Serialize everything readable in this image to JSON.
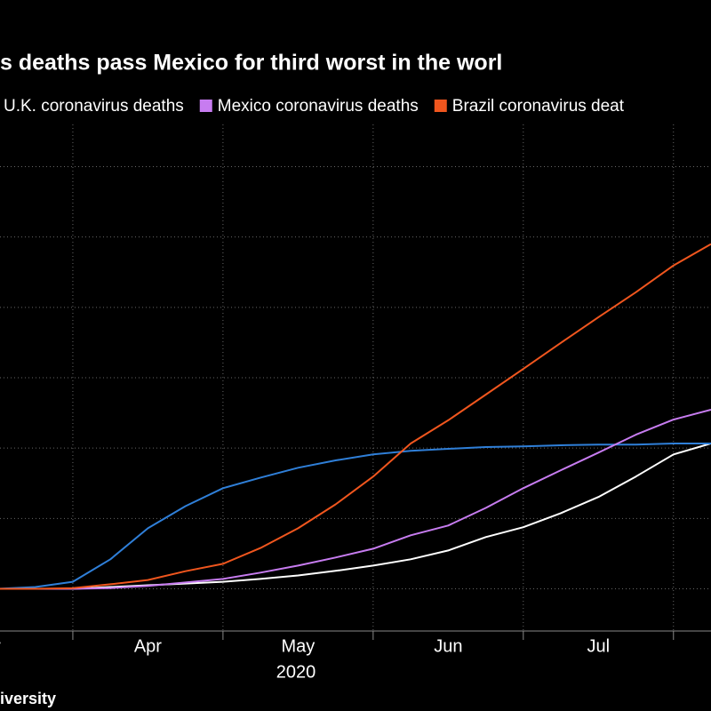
{
  "chart_data": {
    "type": "line",
    "title": "s deaths pass Mexico for third worst in the worl",
    "source": "iversity",
    "year_label": "2020",
    "x": [
      3.5,
      3.75,
      4.0,
      4.25,
      4.5,
      4.75,
      5.0,
      5.25,
      5.5,
      5.75,
      6.0,
      6.25,
      6.5,
      6.75,
      7.0,
      7.25,
      7.5,
      7.75,
      8.0,
      8.25
    ],
    "xlim": [
      3.515,
      8.25
    ],
    "xticks": [
      4,
      5,
      6,
      7,
      8
    ],
    "x_labels": [
      {
        "value": 3.5,
        "label": "r"
      },
      {
        "value": 4.5,
        "label": "Apr"
      },
      {
        "value": 5.5,
        "label": "May"
      },
      {
        "value": 6.5,
        "label": "Jun"
      },
      {
        "value": 7.5,
        "label": "Jul"
      }
    ],
    "ylim": [
      -12000,
      132000
    ],
    "yticks": [
      0,
      20000,
      40000,
      60000,
      80000,
      100000,
      120000
    ],
    "grid": true,
    "series": [
      {
        "name": null,
        "color": "#ffffff",
        "values": [
          0,
          0,
          0,
          500,
          1000,
          1500,
          2000,
          2800,
          3800,
          5100,
          6600,
          8400,
          10900,
          14700,
          17500,
          21500,
          26100,
          31900,
          38200,
          41300
        ]
      },
      {
        "name": "U.K. coronavirus deaths",
        "color": "#2f7fd8",
        "values": [
          0,
          500,
          2000,
          8400,
          17200,
          23500,
          28600,
          31600,
          34400,
          36500,
          38200,
          39200,
          39800,
          40300,
          40500,
          40800,
          41000,
          41000,
          41300,
          41300
        ]
      },
      {
        "name": "Mexico coronavirus deaths",
        "color": "#c77cf0",
        "values": [
          0,
          0,
          0,
          200,
          800,
          1800,
          2800,
          4600,
          6600,
          8900,
          11400,
          15200,
          18000,
          23000,
          28600,
          33700,
          38700,
          43800,
          48100,
          50900
        ]
      },
      {
        "name": "Brazil coronavirus deat",
        "color": "#f0561e",
        "values": [
          0,
          0,
          200,
          1300,
          2500,
          5000,
          7100,
          11600,
          17200,
          24000,
          31900,
          41300,
          47900,
          55200,
          62500,
          69900,
          77200,
          84300,
          91900,
          98000
        ]
      }
    ]
  }
}
